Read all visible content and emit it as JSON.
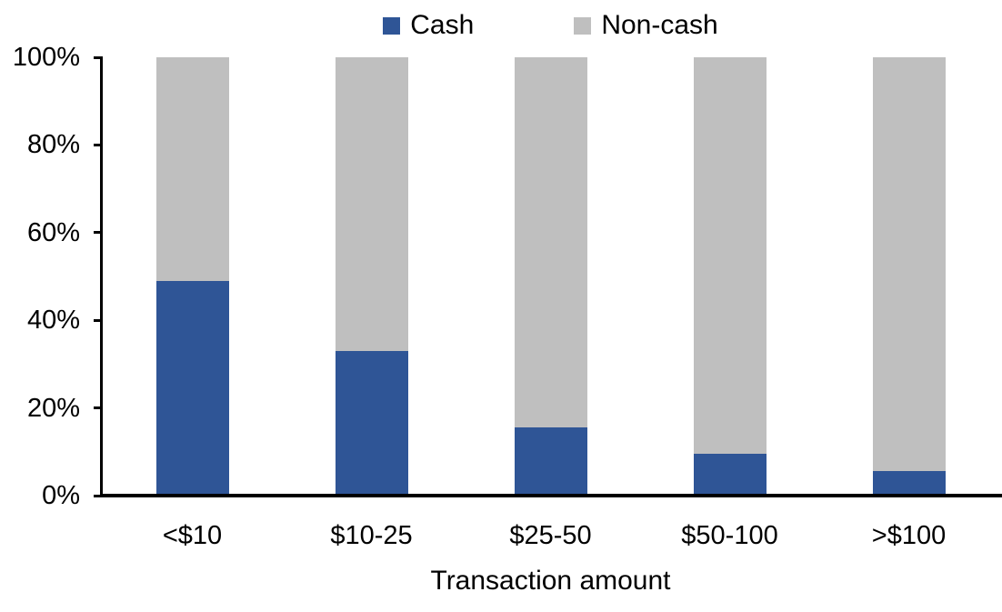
{
  "chart_data": {
    "type": "bar",
    "stacked": true,
    "title": "",
    "categories": [
      "<$10",
      "$10-25",
      "$25-50",
      "$50-100",
      ">$100"
    ],
    "series": [
      {
        "name": "Cash",
        "color": "#2F5596",
        "values": [
          49,
          33,
          15.5,
          9.5,
          5.5
        ]
      },
      {
        "name": "Non-cash",
        "color": "#BFBFBF",
        "values": [
          51,
          67,
          84.5,
          90.5,
          94.5
        ]
      }
    ],
    "xlabel": "Transaction amount",
    "ylabel": "",
    "ylim": [
      0,
      100
    ],
    "ytick_labels": [
      "0%",
      "20%",
      "40%",
      "60%",
      "80%",
      "100%"
    ],
    "ytick_values": [
      0,
      20,
      40,
      60,
      80,
      100
    ],
    "legend_position": "top",
    "grid": false,
    "axis_color": "#000000",
    "background_color": "#FFFFFF",
    "text_color": "#000000"
  }
}
